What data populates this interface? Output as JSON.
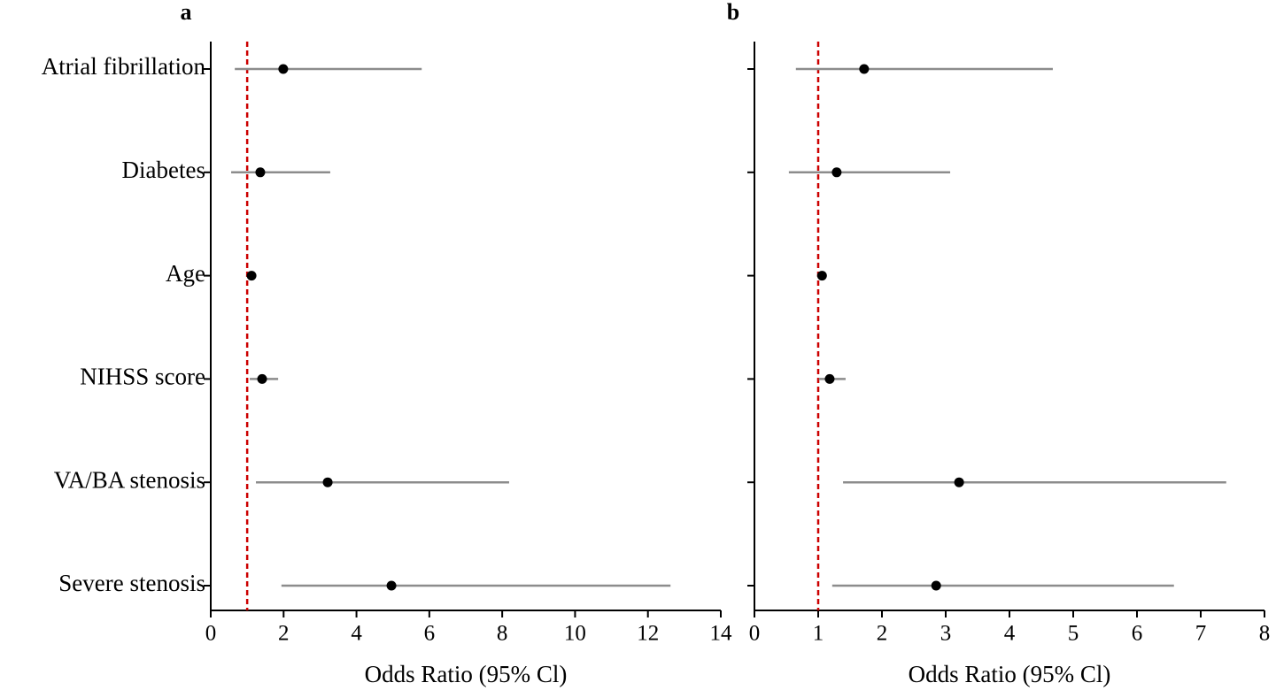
{
  "chart_data": [
    {
      "type": "forest",
      "title": "a",
      "x_label": "Odds Ratio (95% Cl)",
      "categories": [
        "Atrial fibrillation",
        "Diabetes",
        "Age",
        "NIHSS score",
        "VA/BA stenosis",
        "Severe stenosis"
      ],
      "values": [
        1.99,
        1.36,
        1.12,
        1.41,
        3.21,
        4.96
      ],
      "lower": [
        0.66,
        0.56,
        1.05,
        1.07,
        1.24,
        1.94
      ],
      "upper": [
        5.79,
        3.28,
        1.18,
        1.85,
        8.19,
        12.62
      ],
      "xlim": [
        0,
        14
      ],
      "xticks": [
        0,
        2,
        4,
        6,
        8,
        10,
        12,
        14
      ],
      "reference_line": 1,
      "color": "#000000",
      "ci_color": "#8c8c8c",
      "reference_color": "#cc0000"
    },
    {
      "type": "forest",
      "title": "b",
      "x_label": "Odds Ratio (95% Cl)",
      "categories": [
        null,
        null,
        null,
        null,
        null,
        null
      ],
      "values": [
        1.72,
        1.29,
        1.06,
        1.18,
        3.21,
        2.85
      ],
      "lower": [
        0.65,
        0.54,
        1.03,
        1.01,
        1.39,
        1.22
      ],
      "upper": [
        4.68,
        3.07,
        1.09,
        1.43,
        7.4,
        6.58
      ],
      "xlim": [
        0,
        8
      ],
      "xticks": [
        0,
        1,
        2,
        3,
        4,
        5,
        6,
        7,
        8
      ],
      "reference_line": 1,
      "color": "#000000",
      "ci_color": "#8c8c8c",
      "reference_color": "#cc0000"
    }
  ]
}
